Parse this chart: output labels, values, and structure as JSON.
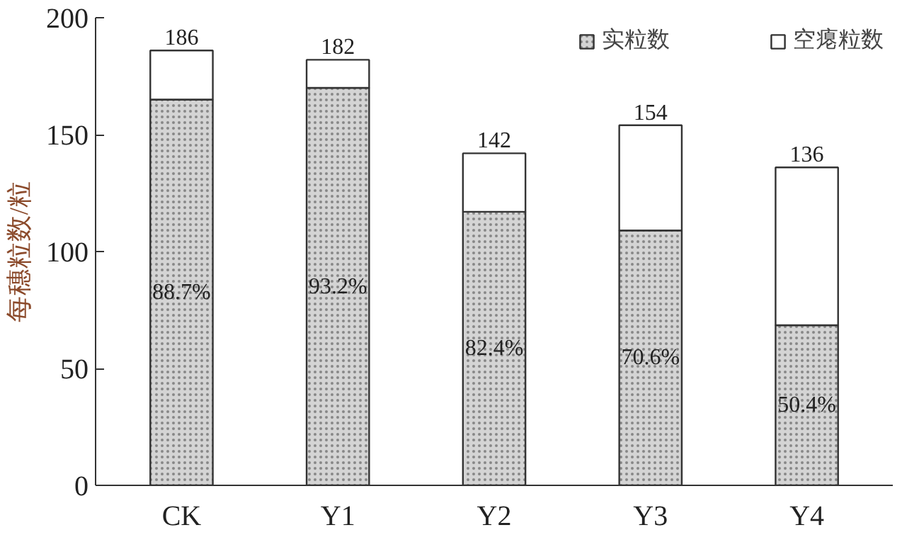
{
  "chart_data": {
    "type": "bar",
    "stacked": true,
    "ylabel": "每穗粒数/粒",
    "categories": [
      "CK",
      "Y1",
      "Y2",
      "Y3",
      "Y4"
    ],
    "series": [
      {
        "name": "实粒数",
        "color": "#d4d4d4",
        "values": [
          165,
          170,
          117,
          109,
          68.5
        ]
      },
      {
        "name": "空瘪粒数",
        "color": "#ffffff",
        "values": [
          21,
          12,
          25,
          45,
          67.5
        ]
      }
    ],
    "totals": [
      "186",
      "182",
      "142",
      "154",
      "136"
    ],
    "annotations": [
      "88.7%",
      "93.2%",
      "82.4%",
      "70.6%",
      "50.4%"
    ],
    "ylim": [
      0,
      200
    ],
    "yticks": [
      0,
      50,
      100,
      150,
      200
    ],
    "legend": "top right"
  }
}
